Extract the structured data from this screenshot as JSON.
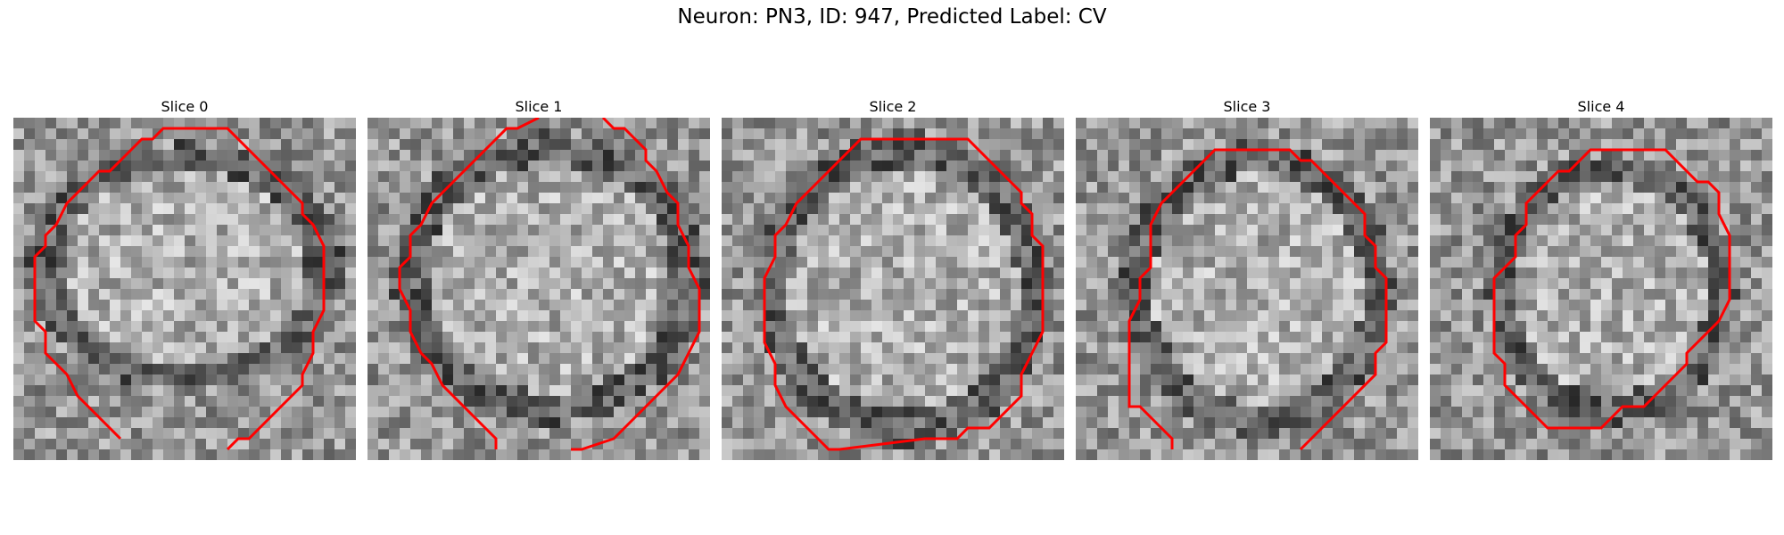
{
  "figure": {
    "title": "Neuron: PN3, ID: 947, Predicted Label: CV"
  },
  "slices": [
    {
      "title": "Slice 0"
    },
    {
      "title": "Slice 1"
    },
    {
      "title": "Slice 2"
    },
    {
      "title": "Slice 3"
    },
    {
      "title": "Slice 4"
    }
  ],
  "colors": {
    "contour": "#ff0000",
    "background": "#ffffff"
  }
}
